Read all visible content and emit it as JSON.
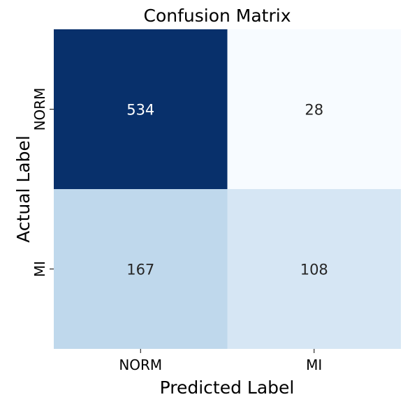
{
  "chart_data": {
    "type": "heatmap",
    "title": "Confusion Matrix",
    "xlabel": "Predicted Label",
    "ylabel": "Actual Label",
    "x_categories": [
      "NORM",
      "MI"
    ],
    "y_categories": [
      "NORM",
      "MI"
    ],
    "values": [
      [
        534,
        28
      ],
      [
        167,
        108
      ]
    ],
    "colormap": "Blues",
    "colorbar": false,
    "colors": {
      "cells": [
        [
          "#08306b",
          "#f7fbff"
        ],
        [
          "#bfd8ec",
          "#d6e6f4"
        ]
      ],
      "text_on_dark": "#ffffff",
      "text_on_light": "#262626"
    }
  }
}
